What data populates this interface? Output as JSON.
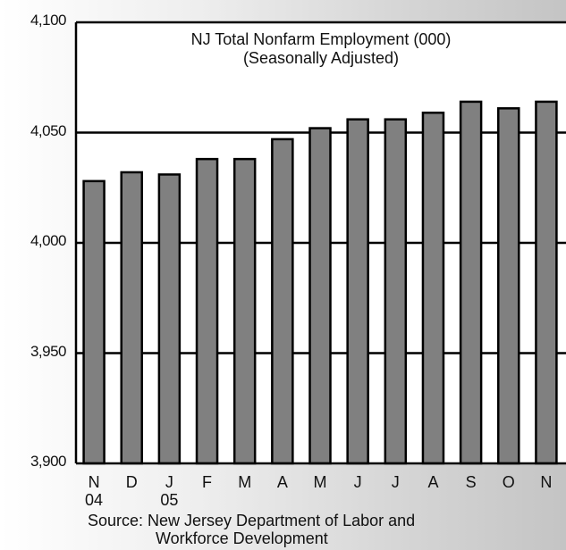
{
  "chart_data": {
    "type": "bar",
    "title": "NJ Total Nonfarm Employment (000)",
    "subtitle": "(Seasonally Adjusted)",
    "categories": [
      "N",
      "D",
      "J",
      "F",
      "M",
      "A",
      "M",
      "J",
      "J",
      "A",
      "S",
      "O",
      "N"
    ],
    "year_labels": [
      "04",
      "",
      "05",
      "",
      "",
      "",
      "",
      "",
      "",
      "",
      "",
      "",
      ""
    ],
    "values": [
      4028,
      4032,
      4031,
      4038,
      4038,
      4047,
      4052,
      4056,
      4056,
      4059,
      4064,
      4061,
      4064
    ],
    "ylim": [
      3900,
      4100
    ],
    "yticks": [
      "3,900",
      "3,950",
      "4,000",
      "4,050",
      "4,100"
    ],
    "ytick_values": [
      3900,
      3950,
      4000,
      4050,
      4100
    ],
    "grid": true,
    "bar_color": "#808080",
    "source_line1": "Source:  New Jersey Department of Labor and",
    "source_line2": "Workforce Development"
  }
}
